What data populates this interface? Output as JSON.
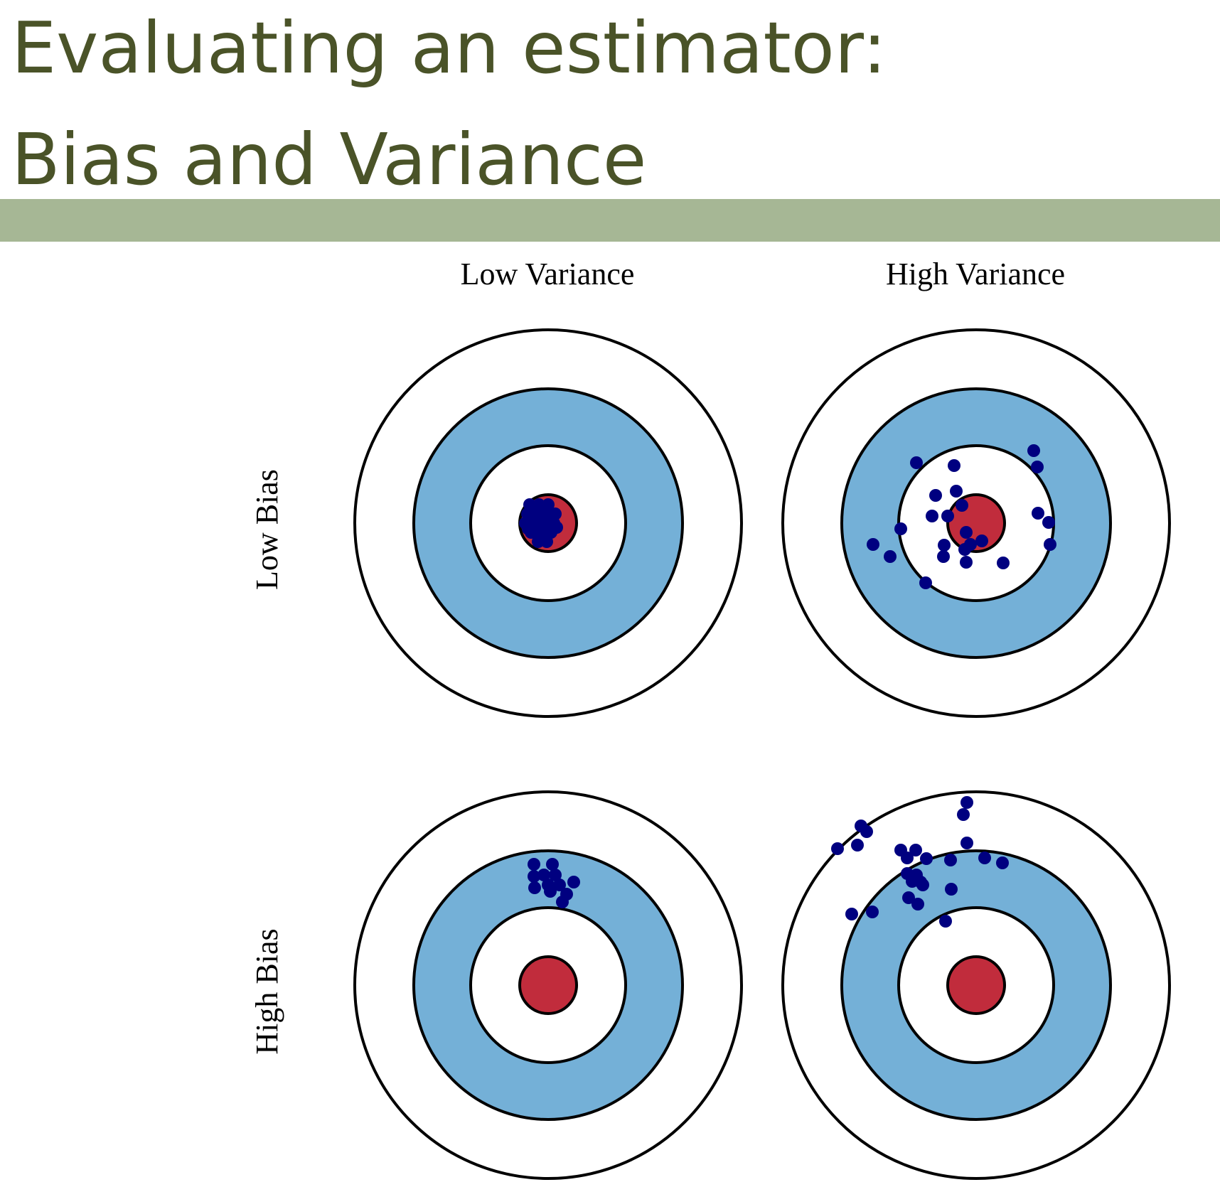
{
  "title": {
    "line1": "Evaluating an estimator:",
    "line2": "Bias and Variance"
  },
  "colors": {
    "title_text": "#4a5328",
    "band": "#a6b795",
    "ring_blue": "#74b0d7",
    "bullseye_red": "#c12c3c",
    "dot": "#000080",
    "ring_stroke": "#000000"
  },
  "columns": [
    {
      "label": "Low Variance"
    },
    {
      "label": "High Variance"
    }
  ],
  "rows": [
    {
      "label": "Low Bias"
    },
    {
      "label": "High Bias"
    }
  ],
  "targets": [
    {
      "name": "target-low-bias-low-variance",
      "row": 0,
      "col": 0,
      "shots": [
        [
          -26,
          -26
        ],
        [
          -13,
          -26
        ],
        [
          0,
          -26
        ],
        [
          -29,
          -13
        ],
        [
          -16,
          -13
        ],
        [
          -3,
          -13
        ],
        [
          10,
          -13
        ],
        [
          -32,
          0
        ],
        [
          -18,
          0
        ],
        [
          -6,
          0
        ],
        [
          8,
          0
        ],
        [
          -24,
          13
        ],
        [
          -10,
          13
        ],
        [
          4,
          13
        ],
        [
          -14,
          26
        ],
        [
          -2,
          26
        ],
        [
          -20,
          -4
        ],
        [
          6,
          -6
        ],
        [
          -8,
          8
        ],
        [
          -28,
          8
        ],
        [
          12,
          6
        ]
      ]
    },
    {
      "name": "target-low-bias-high-variance",
      "row": 0,
      "col": 1,
      "shots": [
        [
          -84,
          -85
        ],
        [
          -31,
          -81
        ],
        [
          81,
          -102
        ],
        [
          86,
          -79
        ],
        [
          -28,
          -45
        ],
        [
          -57,
          -39
        ],
        [
          -20,
          -25
        ],
        [
          -62,
          -10
        ],
        [
          -40,
          -10
        ],
        [
          87,
          -14
        ],
        [
          102,
          -1
        ],
        [
          -106,
          8
        ],
        [
          -14,
          13
        ],
        [
          -145,
          30
        ],
        [
          104,
          30
        ],
        [
          -45,
          31
        ],
        [
          8,
          25
        ],
        [
          -8,
          30
        ],
        [
          -16,
          37
        ],
        [
          -121,
          47
        ],
        [
          -46,
          47
        ],
        [
          38,
          56
        ],
        [
          -14,
          55
        ],
        [
          -71,
          84
        ]
      ]
    },
    {
      "name": "target-high-bias-low-variance",
      "row": 1,
      "col": 0,
      "shots": [
        [
          -20,
          -170
        ],
        [
          6,
          -170
        ],
        [
          -20,
          -153
        ],
        [
          -6,
          -155
        ],
        [
          10,
          -155
        ],
        [
          -19,
          -137
        ],
        [
          0,
          -141
        ],
        [
          16,
          -141
        ],
        [
          36,
          -145
        ],
        [
          3,
          -132
        ],
        [
          26,
          -128
        ],
        [
          20,
          -117
        ]
      ]
    },
    {
      "name": "target-high-bias-high-variance",
      "row": 1,
      "col": 1,
      "shots": [
        [
          -13,
          -257
        ],
        [
          -18,
          -240
        ],
        [
          -162,
          -224
        ],
        [
          -154,
          -216
        ],
        [
          -13,
          -200
        ],
        [
          -167,
          -197
        ],
        [
          -195,
          -192
        ],
        [
          -106,
          -190
        ],
        [
          -85,
          -190
        ],
        [
          -97,
          -179
        ],
        [
          12,
          -179
        ],
        [
          -70,
          -178
        ],
        [
          -36,
          -176
        ],
        [
          37,
          -172
        ],
        [
          -97,
          -157
        ],
        [
          -84,
          -155
        ],
        [
          -78,
          -145
        ],
        [
          -90,
          -146
        ],
        [
          -75,
          -141
        ],
        [
          -35,
          -135
        ],
        [
          -95,
          -123
        ],
        [
          -82,
          -114
        ],
        [
          -146,
          -103
        ],
        [
          -175,
          -100
        ],
        [
          -43,
          -90
        ]
      ]
    }
  ]
}
